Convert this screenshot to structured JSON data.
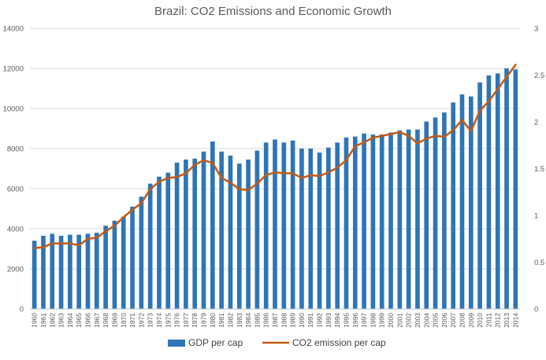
{
  "chart_data": {
    "type": "bar",
    "title": "Brazil: CO2 Emissions and Economic Growth",
    "grid": true,
    "legend_position": "bottom",
    "categories": [
      "1960",
      "1961",
      "1962",
      "1963",
      "1964",
      "1965",
      "1966",
      "1967",
      "1968",
      "1969",
      "1970",
      "1971",
      "1972",
      "1973",
      "1974",
      "1975",
      "1976",
      "1977",
      "1978",
      "1979",
      "1980",
      "1981",
      "1982",
      "1983",
      "1984",
      "1985",
      "1986",
      "1987",
      "1988",
      "1989",
      "1990",
      "1991",
      "1992",
      "1993",
      "1994",
      "1995",
      "1996",
      "1997",
      "1998",
      "1999",
      "2000",
      "2001",
      "2002",
      "2003",
      "2004",
      "2005",
      "2006",
      "2007",
      "2008",
      "2009",
      "2010",
      "2011",
      "2012",
      "2013",
      "2014"
    ],
    "y_left": {
      "min": 0,
      "max": 14000,
      "ticks": [
        "0",
        "2000",
        "4000",
        "6000",
        "8000",
        "10000",
        "12000",
        "14000"
      ]
    },
    "y_right": {
      "min": 0,
      "max": 3,
      "ticks": [
        "0",
        "0.5",
        "1",
        "1.5",
        "2",
        "2.5",
        "3"
      ]
    },
    "series": [
      {
        "name": "GDP per cap",
        "type": "bar",
        "axis": "left",
        "color": "#2e75b6",
        "values": [
          3400,
          3650,
          3750,
          3650,
          3700,
          3700,
          3750,
          3800,
          4150,
          4400,
          4600,
          5100,
          5600,
          6250,
          6600,
          6800,
          7300,
          7450,
          7500,
          7850,
          8350,
          7850,
          7650,
          7250,
          7450,
          7900,
          8300,
          8450,
          8300,
          8400,
          8000,
          8000,
          7800,
          8050,
          8300,
          8550,
          8600,
          8750,
          8700,
          8700,
          8800,
          8900,
          8950,
          8950,
          9350,
          9550,
          9800,
          10300,
          10700,
          10600,
          11300,
          11650,
          11750,
          12000,
          11950
        ]
      },
      {
        "name": "CO2 emission per cap",
        "type": "line",
        "axis": "right",
        "color": "#c55a11",
        "values": [
          0.65,
          0.66,
          0.7,
          0.7,
          0.7,
          0.68,
          0.75,
          0.76,
          0.83,
          0.89,
          0.98,
          1.06,
          1.13,
          1.28,
          1.36,
          1.4,
          1.41,
          1.45,
          1.54,
          1.59,
          1.56,
          1.4,
          1.35,
          1.28,
          1.27,
          1.34,
          1.43,
          1.46,
          1.45,
          1.45,
          1.4,
          1.43,
          1.42,
          1.46,
          1.51,
          1.59,
          1.74,
          1.78,
          1.83,
          1.85,
          1.87,
          1.89,
          1.85,
          1.77,
          1.82,
          1.85,
          1.84,
          1.91,
          2.02,
          1.9,
          2.12,
          2.22,
          2.35,
          2.48,
          2.61
        ]
      }
    ]
  }
}
